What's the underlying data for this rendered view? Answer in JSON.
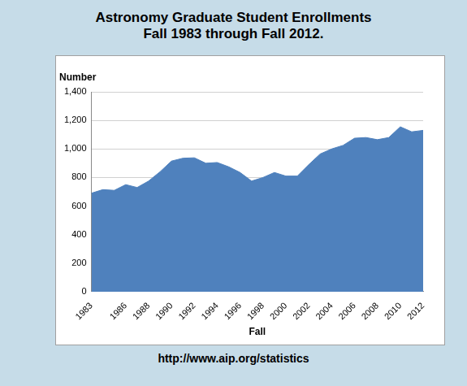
{
  "chart_data": {
    "type": "area",
    "title": "Astronomy Graduate Student Enrollments",
    "subtitle": "Fall 1983 through Fall 2012.",
    "x_label": "Fall",
    "y_label": "Number",
    "source": "http://www.aip.org/statistics",
    "categories": [
      "1983",
      null,
      null,
      "1986",
      null,
      "1988",
      null,
      "1990",
      null,
      "1992",
      null,
      "1994",
      null,
      "1996",
      null,
      "1998",
      null,
      "2000",
      null,
      "2002",
      null,
      "2004",
      null,
      "2006",
      null,
      "2008",
      null,
      "2010",
      null,
      "2012"
    ],
    "values": [
      690,
      715,
      710,
      750,
      730,
      775,
      840,
      915,
      935,
      938,
      900,
      905,
      875,
      835,
      775,
      800,
      835,
      810,
      810,
      890,
      965,
      1000,
      1025,
      1075,
      1080,
      1065,
      1080,
      1155,
      1120,
      1130
    ],
    "color": "#4f81bd",
    "ylim": [
      0,
      1400
    ],
    "yticks": [
      0,
      200,
      400,
      600,
      800,
      {
        "value": 1000,
        "label": "1,000"
      },
      {
        "value": 1200,
        "label": "1,200"
      },
      {
        "value": 1400,
        "label": "1,400"
      }
    ],
    "grid": true
  }
}
